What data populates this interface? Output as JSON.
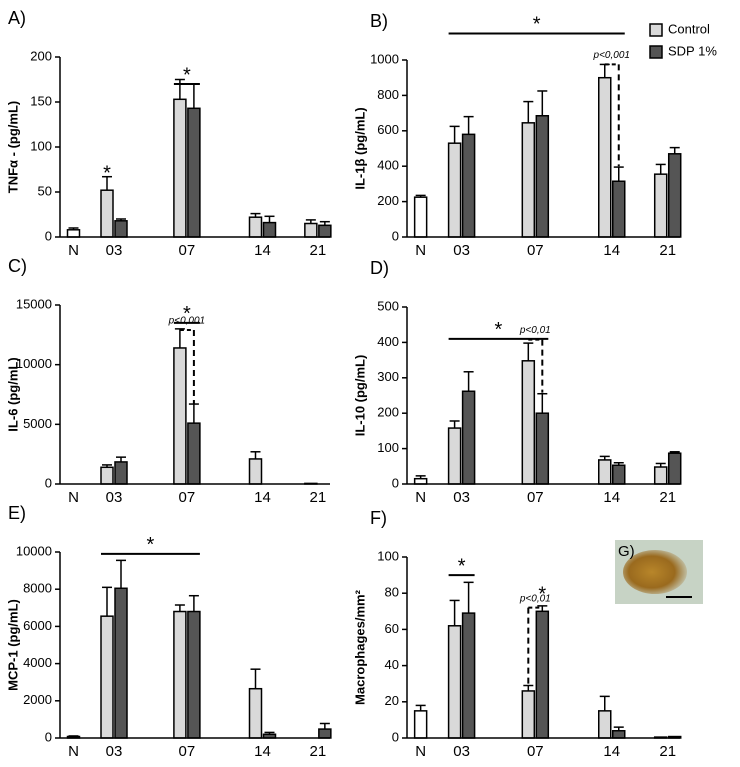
{
  "chart_data": [
    {
      "type": "bar",
      "label": "A)",
      "ylabel": "TNFα - (pg/mL)",
      "categories": [
        "N",
        "03",
        "07",
        "14",
        "21"
      ],
      "ylim": [
        0,
        200
      ],
      "yticks": [
        0,
        50,
        100,
        150,
        200
      ],
      "series": [
        {
          "color": "#ffffff",
          "values": [
            8,
            null,
            null,
            null,
            null
          ],
          "errors": [
            2,
            null,
            null,
            null,
            null
          ]
        },
        {
          "name": "Control",
          "color": "#d9d9d9",
          "values": [
            null,
            52,
            153,
            22,
            15
          ],
          "errors": [
            null,
            15,
            22,
            4,
            4
          ]
        },
        {
          "name": "SDP 1%",
          "color": "#555555",
          "values": [
            null,
            18,
            143,
            16,
            13
          ],
          "errors": [
            null,
            2,
            27,
            7,
            4
          ]
        }
      ],
      "annotations": [
        {
          "text": "*"
        },
        {
          "text": "*"
        }
      ]
    },
    {
      "type": "bar",
      "label": "B)",
      "ylabel": "IL-1β (pg/mL)",
      "categories": [
        "N",
        "03",
        "07",
        "14",
        "21"
      ],
      "ylim": [
        0,
        1000
      ],
      "yticks": [
        0,
        200,
        400,
        600,
        800,
        1000
      ],
      "legend": "top-right",
      "series": [
        {
          "color": "#ffffff",
          "values": [
            225,
            null,
            null,
            null,
            null
          ],
          "errors": [
            10,
            null,
            null,
            null,
            null
          ]
        },
        {
          "name": "Control",
          "color": "#d9d9d9",
          "values": [
            null,
            530,
            645,
            900,
            355
          ],
          "errors": [
            null,
            95,
            120,
            75,
            55
          ]
        },
        {
          "name": "SDP 1%",
          "color": "#555555",
          "values": [
            null,
            580,
            685,
            315,
            470
          ],
          "errors": [
            null,
            100,
            140,
            80,
            35
          ]
        }
      ],
      "annotations": [
        {
          "text": "*"
        },
        {
          "text": "p<0,001"
        }
      ]
    },
    {
      "type": "bar",
      "label": "C)",
      "ylabel": "IL-6 (pg/mL)",
      "categories": [
        "N",
        "03",
        "07",
        "14",
        "21"
      ],
      "ylim": [
        0,
        15000
      ],
      "yticks": [
        0,
        5000,
        10000,
        15000
      ],
      "series": [
        {
          "color": "#ffffff",
          "values": [
            null,
            null,
            null,
            null,
            null
          ],
          "errors": [
            null,
            null,
            null,
            null,
            null
          ]
        },
        {
          "name": "Control",
          "color": "#d9d9d9",
          "values": [
            null,
            1400,
            11400,
            2100,
            50
          ],
          "errors": [
            null,
            200,
            1600,
            600,
            null
          ]
        },
        {
          "name": "SDP 1%",
          "color": "#555555",
          "values": [
            null,
            1850,
            5100,
            null,
            null
          ],
          "errors": [
            null,
            400,
            1600,
            null,
            null
          ]
        }
      ],
      "annotations": [
        {
          "text": "*"
        },
        {
          "text": "p<0,001"
        }
      ]
    },
    {
      "type": "bar",
      "label": "D)",
      "ylabel": "IL-10 (pg/mL)",
      "categories": [
        "N",
        "03",
        "07",
        "14",
        "21"
      ],
      "ylim": [
        0,
        500
      ],
      "yticks": [
        0,
        100,
        200,
        300,
        400,
        500
      ],
      "series": [
        {
          "color": "#ffffff",
          "values": [
            15,
            null,
            null,
            null,
            null
          ],
          "errors": [
            8,
            null,
            null,
            null,
            null
          ]
        },
        {
          "name": "Control",
          "color": "#d9d9d9",
          "values": [
            null,
            158,
            348,
            68,
            48
          ],
          "errors": [
            null,
            20,
            50,
            10,
            10
          ]
        },
        {
          "name": "SDP 1%",
          "color": "#555555",
          "values": [
            null,
            262,
            200,
            53,
            87
          ],
          "errors": [
            null,
            55,
            55,
            7,
            4
          ]
        }
      ],
      "annotations": [
        {
          "text": "*"
        },
        {
          "text": "p<0,01"
        }
      ]
    },
    {
      "type": "bar",
      "label": "E)",
      "ylabel": "MCP-1 (pg/mL)",
      "categories": [
        "N",
        "03",
        "07",
        "14",
        "21"
      ],
      "ylim": [
        0,
        10000
      ],
      "yticks": [
        0,
        2000,
        4000,
        6000,
        8000,
        10000
      ],
      "series": [
        {
          "color": "#ffffff",
          "values": [
            80,
            null,
            null,
            null,
            null
          ],
          "errors": [
            30,
            null,
            null,
            null,
            null
          ]
        },
        {
          "name": "Control",
          "color": "#d9d9d9",
          "values": [
            null,
            6550,
            6800,
            2650,
            null
          ],
          "errors": [
            null,
            1550,
            350,
            1050,
            null
          ]
        },
        {
          "name": "SDP 1%",
          "color": "#555555",
          "values": [
            null,
            8050,
            6800,
            200,
            480
          ],
          "errors": [
            null,
            1500,
            850,
            100,
            300
          ]
        }
      ],
      "annotations": [
        {
          "text": "*"
        }
      ]
    },
    {
      "type": "bar",
      "label": "F)",
      "ylabel": "Macrophages/mm²",
      "categories": [
        "N",
        "03",
        "07",
        "14",
        "21"
      ],
      "ylim": [
        0,
        100
      ],
      "yticks": [
        0,
        20,
        40,
        60,
        80,
        100
      ],
      "inset_label": "G)",
      "series": [
        {
          "color": "#ffffff",
          "values": [
            15,
            null,
            null,
            null,
            null
          ],
          "errors": [
            3,
            null,
            null,
            null,
            null
          ]
        },
        {
          "name": "Control",
          "color": "#d9d9d9",
          "values": [
            null,
            62,
            26,
            15,
            0.5
          ],
          "errors": [
            null,
            14,
            3,
            8,
            null
          ]
        },
        {
          "name": "SDP 1%",
          "color": "#555555",
          "values": [
            null,
            69,
            70,
            4,
            0.8
          ],
          "errors": [
            null,
            17,
            3,
            2,
            null
          ]
        }
      ],
      "annotations": [
        {
          "text": "*"
        },
        {
          "text": "*"
        },
        {
          "text": "p<0,01"
        }
      ]
    }
  ]
}
